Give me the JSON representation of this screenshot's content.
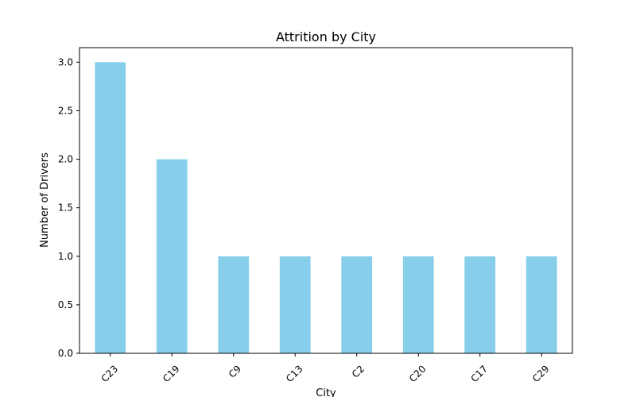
{
  "chart_data": {
    "type": "bar",
    "title": "Attrition by City",
    "xlabel": "City",
    "ylabel": "Number of Drivers",
    "categories": [
      "C23",
      "C19",
      "C9",
      "C13",
      "C2",
      "C20",
      "C17",
      "C29"
    ],
    "values": [
      3,
      2,
      1,
      1,
      1,
      1,
      1,
      1
    ],
    "ylim": [
      0,
      3.15
    ],
    "yticks": [
      "0.0",
      "0.5",
      "1.0",
      "1.5",
      "2.0",
      "2.5",
      "3.0"
    ],
    "bar_color": "#87ceeb",
    "grid": false,
    "legend": "none"
  }
}
